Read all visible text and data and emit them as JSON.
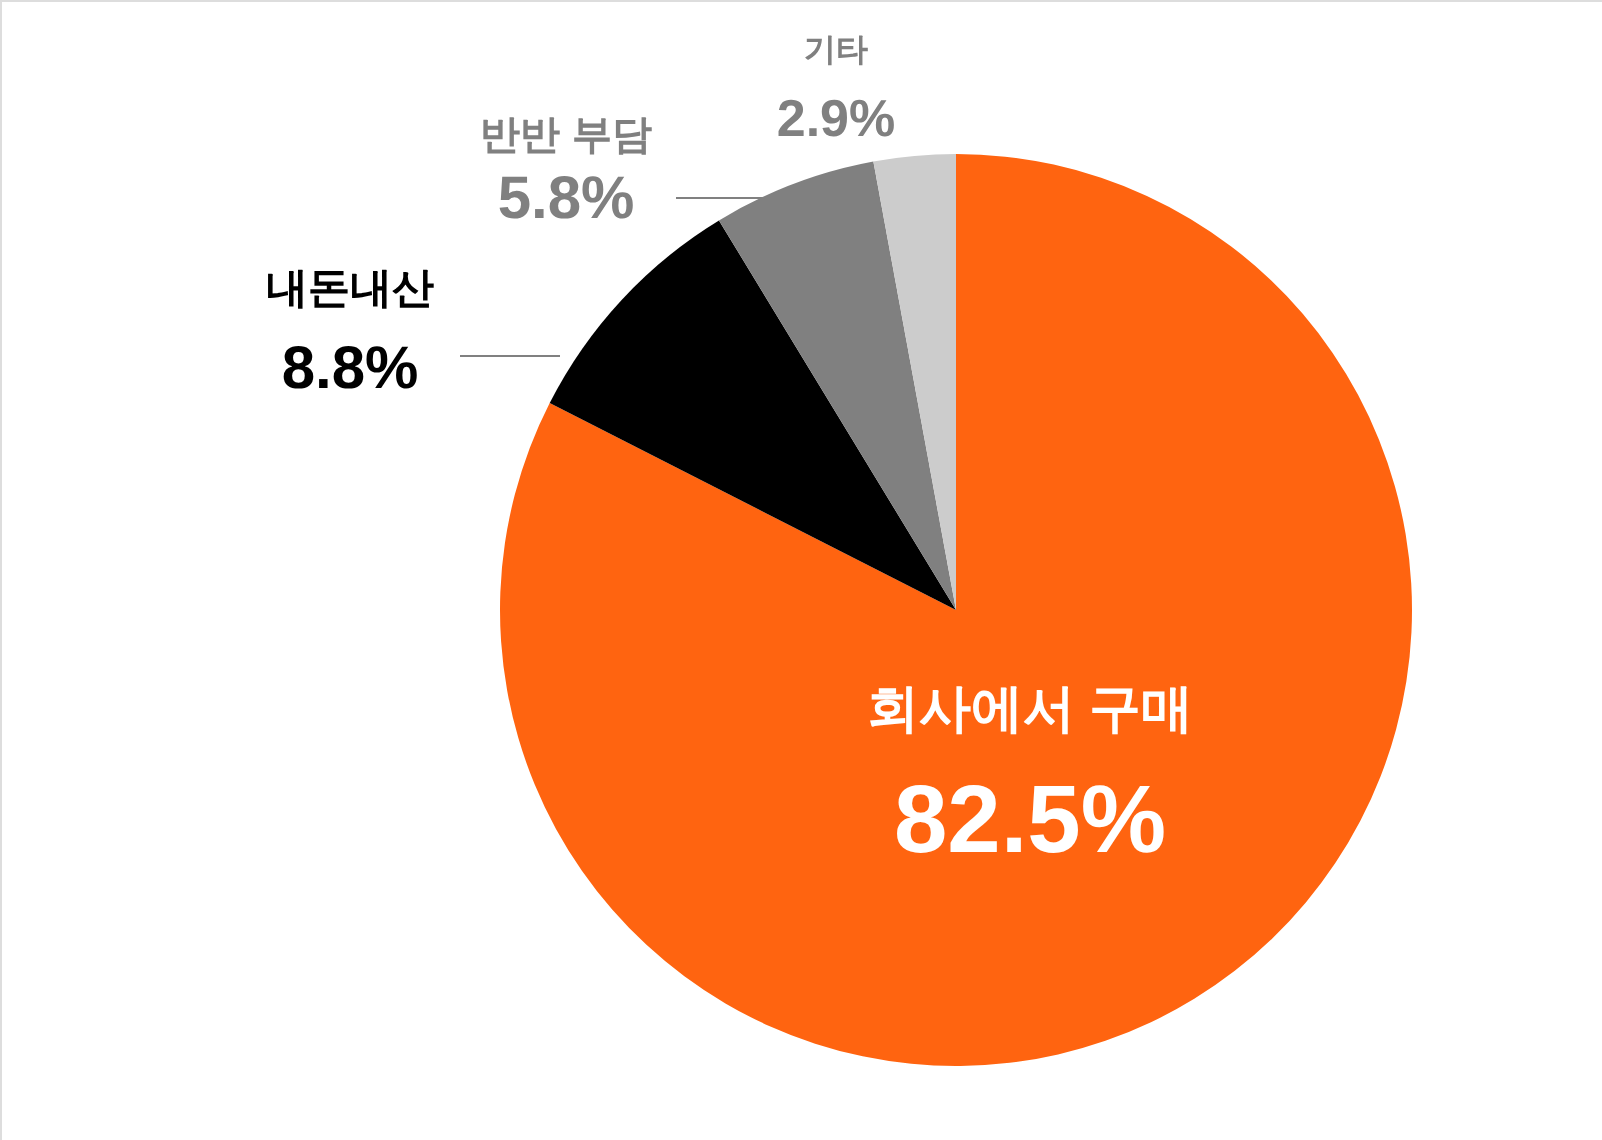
{
  "chart_data": {
    "type": "pie",
    "categories": [
      "회사에서 구매",
      "내돈내산",
      "반반 부담",
      "기타"
    ],
    "values": [
      82.5,
      8.8,
      5.8,
      2.9
    ],
    "colors": [
      "#ff6410",
      "#000000",
      "#808080",
      "#cccccc"
    ],
    "value_labels": [
      "82.5%",
      "8.8%",
      "5.8%",
      "2.9%"
    ]
  }
}
